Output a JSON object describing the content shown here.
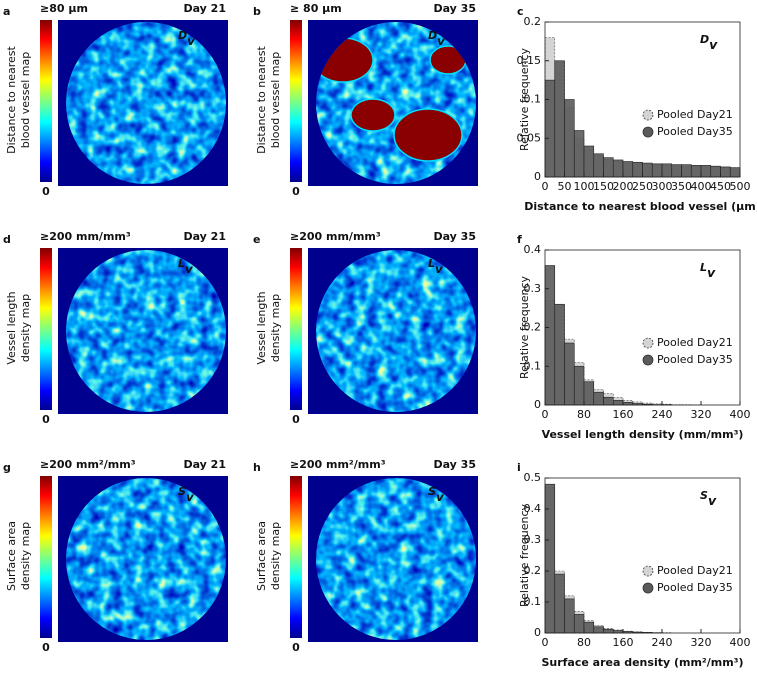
{
  "maps": [
    {
      "letter": "a",
      "scale_max": "≥80 µm",
      "scale_min": "0",
      "day": "Day 21",
      "ylabel": [
        "Distance to nearest",
        "blood vessel map"
      ],
      "symbol": {
        "main": "D",
        "sub": "v"
      }
    },
    {
      "letter": "b",
      "scale_max": "≥ 80 µm",
      "scale_min": "0",
      "day": "Day 35",
      "ylabel": [
        "Distance to nearest",
        "blood vessel map"
      ],
      "symbol": {
        "main": "D",
        "sub": "v"
      }
    },
    {
      "letter": "d",
      "scale_max": "≥200 mm/mm³",
      "scale_min": "0",
      "day": "Day 21",
      "ylabel": [
        "Vessel length",
        "density map"
      ],
      "symbol": {
        "main": "L",
        "sub": "v"
      }
    },
    {
      "letter": "e",
      "scale_max": "≥200 mm/mm³",
      "scale_min": "0",
      "day": "Day 35",
      "ylabel": [
        "Vessel length",
        "density map"
      ],
      "symbol": {
        "main": "L",
        "sub": "v"
      }
    },
    {
      "letter": "g",
      "scale_max": "≥200 mm²/mm³",
      "scale_min": "0",
      "day": "Day 21",
      "ylabel": [
        "Surface area",
        "density map"
      ],
      "symbol": {
        "main": "S",
        "sub": "v"
      }
    },
    {
      "letter": "h",
      "scale_max": "≥200 mm²/mm³",
      "scale_min": "0",
      "day": "Day 35",
      "ylabel": [
        "Surface area",
        "density map"
      ],
      "symbol": {
        "main": "S",
        "sub": "v"
      }
    }
  ],
  "chart_data": [
    {
      "type": "histogram",
      "label": "c",
      "annotation": {
        "main": "D",
        "sub": "v"
      },
      "xlabel": "Distance to nearest blood vessel (µm)",
      "ylabel": "Relative frequency",
      "bins": [
        0,
        25,
        50,
        75,
        100,
        125,
        150,
        175,
        200,
        225,
        250,
        275,
        300,
        325,
        350,
        375,
        400,
        425,
        450,
        475,
        500
      ],
      "series": [
        {
          "name": "Pooled Day21",
          "color": "#d4d4d4",
          "values": [
            0.18,
            0.15,
            0.09,
            0.05,
            0.035,
            0.028,
            0.023,
            0.02,
            0.018,
            0.017,
            0.016,
            0.016,
            0.015,
            0.015,
            0.014,
            0.014,
            0.013,
            0.013,
            0.012,
            0.012
          ]
        },
        {
          "name": "Pooled Day35",
          "color": "#5a5a5a",
          "values": [
            0.125,
            0.15,
            0.1,
            0.06,
            0.04,
            0.03,
            0.025,
            0.022,
            0.02,
            0.019,
            0.018,
            0.017,
            0.017,
            0.016,
            0.016,
            0.015,
            0.015,
            0.014,
            0.013,
            0.012
          ]
        }
      ],
      "xlim": [
        0,
        500
      ],
      "xticks": [
        0,
        50,
        100,
        150,
        200,
        250,
        300,
        350,
        400,
        450,
        500
      ],
      "ylim": [
        0,
        0.2
      ],
      "yticks": [
        0,
        0.05,
        0.1,
        0.15,
        0.2
      ],
      "legend": "right"
    },
    {
      "type": "histogram",
      "label": "f",
      "annotation": {
        "main": "L",
        "sub": "v"
      },
      "xlabel": "Vessel length density (mm/mm³)",
      "ylabel": "Relative frequency",
      "bins": [
        0,
        20,
        40,
        60,
        80,
        100,
        120,
        140,
        160,
        180,
        200,
        220,
        240,
        260,
        280,
        300,
        320,
        340,
        360,
        380,
        400
      ],
      "series": [
        {
          "name": "Pooled Day21",
          "color": "#d4d4d4",
          "values": [
            0.27,
            0.26,
            0.17,
            0.11,
            0.065,
            0.04,
            0.03,
            0.02,
            0.012,
            0.008,
            0.005,
            0.003,
            0.002,
            0.001,
            0.001,
            0.0005,
            0,
            0,
            0,
            0
          ]
        },
        {
          "name": "Pooled Day35",
          "color": "#5a5a5a",
          "values": [
            0.36,
            0.26,
            0.16,
            0.1,
            0.06,
            0.033,
            0.02,
            0.012,
            0.007,
            0.004,
            0.002,
            0.001,
            0.001,
            0,
            0,
            0,
            0,
            0,
            0,
            0
          ]
        }
      ],
      "xlim": [
        0,
        400
      ],
      "xticks": [
        0,
        80,
        160,
        240,
        320,
        400
      ],
      "ylim": [
        0,
        0.4
      ],
      "yticks": [
        0,
        0.1,
        0.2,
        0.3,
        0.4
      ],
      "legend": "right"
    },
    {
      "type": "histogram",
      "label": "i",
      "annotation": {
        "main": "S",
        "sub": "v"
      },
      "xlabel": "Surface area density (mm²/mm³)",
      "ylabel": "Relative frequency",
      "bins": [
        0,
        20,
        40,
        60,
        80,
        100,
        120,
        140,
        160,
        180,
        200,
        220,
        240,
        260,
        280,
        300,
        320,
        340,
        360,
        380,
        400
      ],
      "series": [
        {
          "name": "Pooled Day21",
          "color": "#d4d4d4",
          "values": [
            0.47,
            0.2,
            0.12,
            0.07,
            0.04,
            0.025,
            0.015,
            0.01,
            0.006,
            0.004,
            0.002,
            0.001,
            0.001,
            0,
            0,
            0,
            0,
            0,
            0,
            0
          ]
        },
        {
          "name": "Pooled Day35",
          "color": "#5a5a5a",
          "values": [
            0.48,
            0.19,
            0.11,
            0.06,
            0.035,
            0.02,
            0.012,
            0.008,
            0.005,
            0.003,
            0.002,
            0.001,
            0,
            0,
            0,
            0,
            0,
            0,
            0,
            0
          ]
        }
      ],
      "xlim": [
        0,
        400
      ],
      "xticks": [
        0,
        80,
        160,
        240,
        320,
        400
      ],
      "ylim": [
        0,
        0.5
      ],
      "yticks": [
        0,
        0.1,
        0.2,
        0.3,
        0.4,
        0.5
      ],
      "legend": "right"
    }
  ]
}
